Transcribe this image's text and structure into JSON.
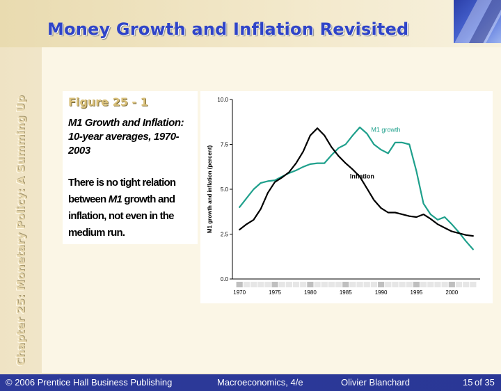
{
  "slide": {
    "title": "Money Growth and Inflation Revisited",
    "side_label": "Chapter 25: Monetary Policy: A Summing Up"
  },
  "caption": {
    "figure_label": "Figure 25 - 1",
    "figure_title": "M1 Growth and Inflation:  10-year averages, 1970-2003",
    "desc_part1": "There is no tight relation between ",
    "desc_italic": "M1",
    "desc_part2": " growth and inflation, not even in the medium run."
  },
  "footer": {
    "copyright": "© 2006 Prentice Hall Business Publishing",
    "book": "Macroeconomics, 4/e",
    "author": "Olivier Blanchard",
    "page_current": "15",
    "page_of": "of 35"
  },
  "colors": {
    "m1_line": "#1fa08c",
    "inflation_line": "#000000",
    "title": "#2f44c8",
    "footer_bg": "#2d3a9a"
  },
  "chart_data": {
    "type": "line",
    "ylabel": "M1 growth and inflation (percent)",
    "ylim": [
      0,
      10
    ],
    "yticks": [
      "0.0",
      "2.5",
      "5.0",
      "7.5",
      "10.0"
    ],
    "xlim": [
      1969,
      2004
    ],
    "xticks": [
      "1970",
      "1975",
      "1980",
      "1985",
      "1990",
      "1995",
      "2000"
    ],
    "grid": false,
    "series": [
      {
        "name": "M1 growth",
        "color": "#1fa08c",
        "x": [
          1970,
          1971,
          1972,
          1973,
          1974,
          1975,
          1976,
          1977,
          1978,
          1979,
          1980,
          1981,
          1982,
          1983,
          1984,
          1985,
          1986,
          1987,
          1988,
          1989,
          1990,
          1991,
          1992,
          1993,
          1994,
          1995,
          1996,
          1997,
          1998,
          1999,
          2000,
          2001,
          2002,
          2003
        ],
        "values": [
          4.0,
          4.5,
          5.0,
          5.35,
          5.45,
          5.5,
          5.7,
          5.9,
          6.05,
          6.25,
          6.4,
          6.45,
          6.45,
          6.9,
          7.3,
          7.5,
          8.0,
          8.45,
          8.1,
          7.5,
          7.2,
          7.0,
          7.6,
          7.6,
          7.5,
          6.0,
          4.2,
          3.6,
          3.3,
          3.45,
          3.05,
          2.6,
          2.1,
          1.65
        ]
      },
      {
        "name": "Inflation",
        "color": "#000000",
        "x": [
          1970,
          1971,
          1972,
          1973,
          1974,
          1975,
          1976,
          1977,
          1978,
          1979,
          1980,
          1981,
          1982,
          1983,
          1984,
          1985,
          1986,
          1987,
          1988,
          1989,
          1990,
          1991,
          1992,
          1993,
          1994,
          1995,
          1996,
          1997,
          1998,
          1999,
          2000,
          2001,
          2002,
          2003
        ],
        "values": [
          2.75,
          3.05,
          3.3,
          3.9,
          4.8,
          5.4,
          5.65,
          5.95,
          6.45,
          7.1,
          8.0,
          8.4,
          8.0,
          7.35,
          6.85,
          6.45,
          6.1,
          5.7,
          5.05,
          4.4,
          3.95,
          3.7,
          3.7,
          3.6,
          3.5,
          3.45,
          3.6,
          3.35,
          3.05,
          2.85,
          2.65,
          2.55,
          2.45,
          2.4
        ]
      }
    ]
  }
}
